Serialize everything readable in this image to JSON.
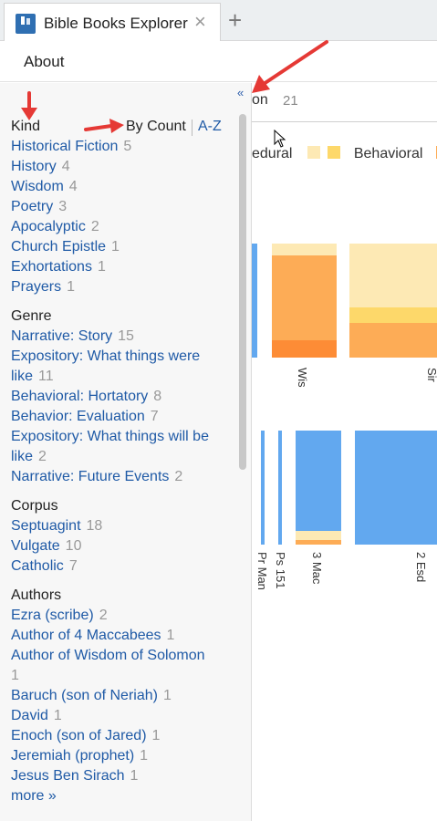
{
  "tab": {
    "title": "Bible Books Explorer",
    "close": "×",
    "add": "+"
  },
  "menu": {
    "about": "About"
  },
  "background": {
    "tab_text": "on",
    "tab_count": "21",
    "legend": [
      "edural",
      "Behavioral"
    ],
    "labels": [
      "Wis",
      "Sir",
      "Pr Man",
      "Ps 151",
      "3 Mac",
      "2 Esd"
    ]
  },
  "panel": {
    "collapse": "«",
    "kind": {
      "title": "Kind",
      "sort_by_count": "By Count",
      "sort_az": "A-Z",
      "items": [
        {
          "label": "Historical Fiction",
          "count": "5"
        },
        {
          "label": "History",
          "count": "4"
        },
        {
          "label": "Wisdom",
          "count": "4"
        },
        {
          "label": "Poetry",
          "count": "3"
        },
        {
          "label": "Apocalyptic",
          "count": "2"
        },
        {
          "label": "Church Epistle",
          "count": "1"
        },
        {
          "label": "Exhortations",
          "count": "1"
        },
        {
          "label": "Prayers",
          "count": "1"
        }
      ]
    },
    "genre": {
      "title": "Genre",
      "items": [
        {
          "label": "Narrative: Story",
          "count": "15"
        },
        {
          "label": "Expository: What things were",
          "label2": "like",
          "count": "11"
        },
        {
          "label": "Behavioral: Hortatory",
          "count": "8"
        },
        {
          "label": "Behavior: Evaluation",
          "count": "7"
        },
        {
          "label": "Expository: What things will be",
          "label2": "like",
          "count": "2"
        },
        {
          "label": "Narrative: Future Events",
          "count": "2"
        }
      ]
    },
    "corpus": {
      "title": "Corpus",
      "items": [
        {
          "label": "Septuagint",
          "count": "18"
        },
        {
          "label": "Vulgate",
          "count": "10"
        },
        {
          "label": "Catholic",
          "count": "7"
        }
      ]
    },
    "authors": {
      "title": "Authors",
      "items": [
        {
          "label": "Ezra (scribe)",
          "count": "2"
        },
        {
          "label": "Author of 4 Maccabees",
          "count": "1"
        },
        {
          "label": "Author of Wisdom of Solomon",
          "count": "1"
        },
        {
          "label": "Baruch (son of Neriah)",
          "count": "1"
        },
        {
          "label": "David",
          "count": "1"
        },
        {
          "label": "Enoch (son of Jared)",
          "count": "1"
        },
        {
          "label": "Jeremiah (prophet)",
          "count": "1"
        },
        {
          "label": "Jesus Ben Sirach",
          "count": "1"
        }
      ],
      "more": "more »"
    }
  },
  "colors": {
    "link": "#1f5aa6",
    "count": "#999999",
    "blue_bar": "#62a8ef",
    "orange_bar": "#fdac56",
    "light_yellow": "#fde9b4",
    "yellow": "#fdd86a",
    "annotation_red": "#e53935"
  }
}
